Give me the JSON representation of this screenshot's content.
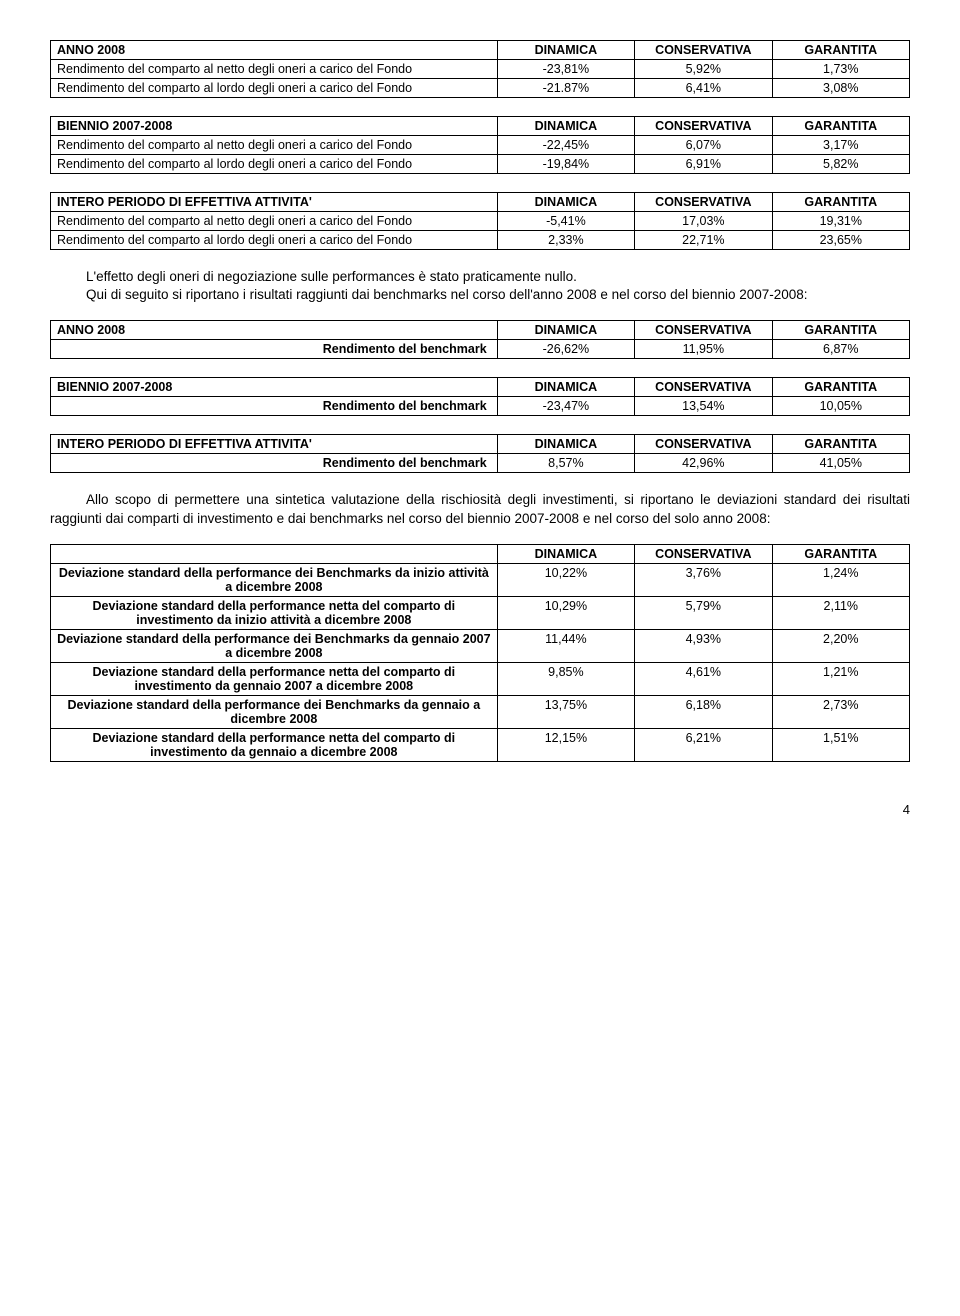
{
  "col_headers": {
    "c1": "DINAMICA",
    "c2": "CONSERVATIVA",
    "c3": "GARANTITA"
  },
  "row_labels": {
    "netto": "Rendimento del comparto al netto degli oneri a carico del Fondo",
    "lordo": "Rendimento del comparto al lordo degli oneri a carico del Fondo",
    "bench": "Rendimento del benchmark"
  },
  "section_titles": {
    "anno2008": "ANNO 2008",
    "biennio": "BIENNIO 2007-2008",
    "intero": "INTERO PERIODO DI EFFETTIVA ATTIVITA'"
  },
  "t1": {
    "r1": {
      "v1": "-23,81%",
      "v2": "5,92%",
      "v3": "1,73%"
    },
    "r2": {
      "v1": "-21.87%",
      "v2": "6,41%",
      "v3": "3,08%"
    }
  },
  "t2": {
    "r1": {
      "v1": "-22,45%",
      "v2": "6,07%",
      "v3": "3,17%"
    },
    "r2": {
      "v1": "-19,84%",
      "v2": "6,91%",
      "v3": "5,82%"
    }
  },
  "t3": {
    "r1": {
      "v1": "-5,41%",
      "v2": "17,03%",
      "v3": "19,31%"
    },
    "r2": {
      "v1": "2,33%",
      "v2": "22,71%",
      "v3": "23,65%"
    }
  },
  "para1": "L'effetto degli oneri di negoziazione sulle performances è stato praticamente nullo.",
  "para2": "Qui di seguito si riportano i risultati raggiunti dai benchmarks nel corso dell'anno 2008 e nel corso del biennio 2007-2008:",
  "t4": {
    "v1": "-26,62%",
    "v2": "11,95%",
    "v3": "6,87%"
  },
  "t5": {
    "v1": "-23,47%",
    "v2": "13,54%",
    "v3": "10,05%"
  },
  "t6": {
    "v1": "8,57%",
    "v2": "42,96%",
    "v3": "41,05%"
  },
  "para3": "Allo scopo di permettere una sintetica valutazione della rischiosità degli investimenti, si riportano le deviazioni standard dei risultati raggiunti dai comparti di investimento e dai benchmarks nel corso del biennio 2007-2008 e nel corso del solo anno 2008:",
  "dev": {
    "r1": {
      "label": "Deviazione standard della performance dei Benchmarks da inizio attività a dicembre 2008",
      "v1": "10,22%",
      "v2": "3,76%",
      "v3": "1,24%"
    },
    "r2": {
      "label": "Deviazione standard della performance netta del comparto di investimento da inizio attività a dicembre 2008",
      "v1": "10,29%",
      "v2": "5,79%",
      "v3": "2,11%"
    },
    "r3": {
      "label": "Deviazione standard della performance dei Benchmarks da gennaio 2007 a dicembre 2008",
      "v1": "11,44%",
      "v2": "4,93%",
      "v3": "2,20%"
    },
    "r4": {
      "label": "Deviazione standard della performance netta del comparto di investimento da gennaio 2007 a dicembre 2008",
      "v1": "9,85%",
      "v2": "4,61%",
      "v3": "1,21%"
    },
    "r5": {
      "label": "Deviazione standard della performance dei Benchmarks da gennaio a dicembre 2008",
      "v1": "13,75%",
      "v2": "6,18%",
      "v3": "2,73%"
    },
    "r6": {
      "label": "Deviazione standard della performance netta del comparto di investimento da gennaio a dicembre 2008",
      "v1": "12,15%",
      "v2": "6,21%",
      "v3": "1,51%"
    }
  },
  "page_number": "4"
}
